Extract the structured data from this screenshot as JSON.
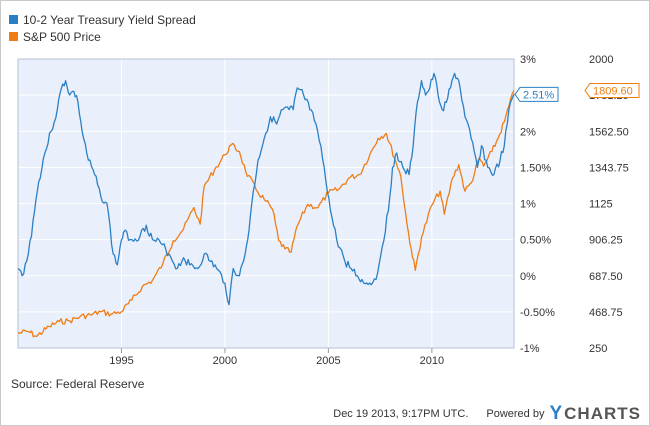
{
  "legend": {
    "items": [
      {
        "label": "10-2 Year Treasury Yield Spread",
        "color": "#2b80c5"
      },
      {
        "label": "S&P 500 Price",
        "color": "#f07d12"
      }
    ]
  },
  "source": "Source: Federal Reserve",
  "footer": {
    "timestamp": "Dec 19 2013, 9:17PM UTC.",
    "powered_by": "Powered by",
    "brand_mark": "Y",
    "brand_text": "CHARTS"
  },
  "chart_data": {
    "type": "line",
    "grid": true,
    "legend_position": "top-left",
    "background_color": "#e9effb",
    "x_axis": {
      "range": [
        1990.0,
        2013.97
      ],
      "ticks": [
        1995,
        2000,
        2005,
        2010
      ],
      "tick_labels": [
        "1995",
        "2000",
        "2005",
        "2010"
      ]
    },
    "y_axis_left": {
      "range": [
        -1,
        3
      ],
      "ticks": [
        3,
        2.5,
        2,
        1.5,
        1,
        0.5,
        0,
        -0.5,
        -1
      ],
      "tick_labels": [
        "3%",
        "2.50%",
        "2%",
        "1.50%",
        "1%",
        "0.50%",
        "0%",
        "-0.50%",
        "-1%"
      ]
    },
    "y_axis_right": {
      "range": [
        250,
        2000
      ],
      "ticks": [
        2000,
        1781.25,
        1562.5,
        1343.75,
        1125,
        906.25,
        687.5,
        468.75,
        250
      ],
      "tick_labels": [
        "2000",
        "1781.25",
        "1562.50",
        "1343.75",
        "1125",
        "906.25",
        "687.50",
        "468.75",
        "250"
      ]
    },
    "series": [
      {
        "name": "10-2 Year Treasury Yield Spread",
        "axis": "left",
        "color": "#2b80c5",
        "last_value_label": "2.51%",
        "x": [
          1990.0,
          1990.2,
          1990.5,
          1990.8,
          1991.0,
          1991.3,
          1991.6,
          1991.9,
          1992.1,
          1992.3,
          1992.5,
          1992.7,
          1992.9,
          1993.1,
          1993.4,
          1993.7,
          1994.0,
          1994.3,
          1994.6,
          1994.8,
          1995.0,
          1995.1,
          1995.5,
          1995.9,
          1996.2,
          1996.5,
          1996.9,
          1997.3,
          1997.7,
          1998.0,
          1998.3,
          1998.7,
          1999.0,
          1999.3,
          1999.6,
          2000.0,
          2000.2,
          2000.4,
          2000.7,
          2000.9,
          2001.1,
          2001.3,
          2001.6,
          2001.9,
          2002.2,
          2002.5,
          2002.8,
          2003.1,
          2003.3,
          2003.5,
          2003.8,
          2004.1,
          2004.4,
          2004.8,
          2005.1,
          2005.4,
          2005.8,
          2006.1,
          2006.4,
          2006.7,
          2007.0,
          2007.3,
          2007.6,
          2007.9,
          2008.1,
          2008.3,
          2008.6,
          2008.9,
          2009.1,
          2009.3,
          2009.5,
          2009.7,
          2009.9,
          2010.1,
          2010.3,
          2010.5,
          2010.7,
          2010.9,
          2011.1,
          2011.3,
          2011.6,
          2011.9,
          2012.2,
          2012.4,
          2012.7,
          2013.0,
          2013.3,
          2013.5,
          2013.8,
          2013.97
        ],
        "y": [
          0.1,
          0.0,
          0.3,
          0.9,
          1.3,
          1.7,
          2.0,
          2.3,
          2.6,
          2.7,
          2.5,
          2.55,
          2.4,
          2.0,
          1.6,
          1.4,
          1.1,
          1.0,
          0.3,
          0.15,
          0.5,
          0.6,
          0.5,
          0.55,
          0.7,
          0.5,
          0.45,
          0.3,
          0.1,
          0.25,
          0.15,
          0.1,
          0.3,
          0.2,
          0.1,
          -0.1,
          -0.4,
          0.1,
          0.0,
          0.2,
          0.5,
          1.0,
          1.6,
          1.9,
          2.2,
          2.1,
          2.3,
          2.3,
          2.3,
          2.6,
          2.5,
          2.3,
          2.1,
          1.5,
          0.9,
          0.5,
          0.2,
          0.1,
          0.0,
          -0.1,
          -0.1,
          -0.05,
          0.4,
          0.9,
          1.5,
          1.7,
          1.5,
          1.4,
          1.8,
          2.4,
          2.7,
          2.5,
          2.6,
          2.8,
          2.5,
          2.3,
          2.4,
          2.6,
          2.8,
          2.7,
          2.2,
          1.9,
          1.5,
          1.8,
          1.5,
          1.4,
          1.6,
          1.8,
          2.4,
          2.51
        ]
      },
      {
        "name": "S&P 500 Price",
        "axis": "right",
        "color": "#f07d12",
        "last_value_label": "1809.60",
        "x": [
          1990.0,
          1990.5,
          1990.9,
          1991.5,
          1992.0,
          1992.5,
          1993.0,
          1993.5,
          1994.0,
          1994.5,
          1995.0,
          1995.5,
          1996.0,
          1996.5,
          1997.0,
          1997.5,
          1998.0,
          1998.5,
          1998.8,
          1999.0,
          1999.5,
          2000.0,
          2000.3,
          2000.7,
          2001.0,
          2001.5,
          2001.9,
          2002.3,
          2002.6,
          2002.9,
          2003.2,
          2003.5,
          2004.0,
          2004.5,
          2005.0,
          2005.5,
          2006.0,
          2006.5,
          2007.0,
          2007.4,
          2007.8,
          2008.2,
          2008.5,
          2008.8,
          2009.0,
          2009.2,
          2009.5,
          2010.0,
          2010.4,
          2010.6,
          2011.0,
          2011.3,
          2011.6,
          2011.9,
          2012.3,
          2012.5,
          2012.9,
          2013.2,
          2013.5,
          2013.97
        ],
        "y": [
          340,
          350,
          320,
          380,
          410,
          415,
          440,
          450,
          470,
          455,
          470,
          540,
          620,
          660,
          760,
          900,
          970,
          1100,
          1000,
          1230,
          1330,
          1420,
          1480,
          1440,
          1320,
          1210,
          1150,
          1090,
          900,
          850,
          830,
          990,
          1120,
          1100,
          1190,
          1210,
          1280,
          1300,
          1420,
          1520,
          1550,
          1400,
          1290,
          1000,
          850,
          720,
          920,
          1115,
          1200,
          1060,
          1280,
          1360,
          1200,
          1250,
          1400,
          1350,
          1440,
          1520,
          1620,
          1809.6
        ]
      }
    ]
  }
}
